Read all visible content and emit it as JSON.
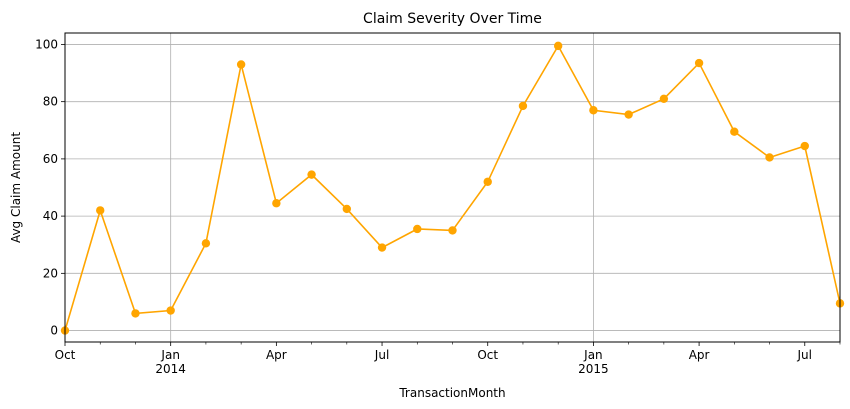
{
  "chart_data": {
    "type": "line",
    "title": "Claim Severity Over Time",
    "xlabel": "TransactionMonth",
    "ylabel": "Avg Claim Amount",
    "x": [
      "2013-10",
      "2013-11",
      "2013-12",
      "2014-01",
      "2014-02",
      "2014-03",
      "2014-04",
      "2014-05",
      "2014-06",
      "2014-07",
      "2014-08",
      "2014-09",
      "2014-10",
      "2014-11",
      "2014-12",
      "2015-01",
      "2015-02",
      "2015-03",
      "2015-04",
      "2015-05",
      "2015-06",
      "2015-07",
      "2015-08"
    ],
    "series": [
      {
        "values": [
          0,
          42,
          6,
          7,
          30.5,
          93,
          44.5,
          54.5,
          42.5,
          29,
          35.5,
          35,
          52,
          78.5,
          99.5,
          77,
          75.5,
          81,
          93.5,
          69.5,
          60.5,
          64.5,
          9.5
        ],
        "color": "#FFA500"
      }
    ],
    "xlim": [
      "2013-10",
      "2015-08"
    ],
    "ylim": [
      -4,
      104
    ],
    "yticks": [
      0,
      20,
      40,
      60,
      80,
      100
    ],
    "xticks_major": [
      {
        "month": "2013-10",
        "label": "Oct",
        "sublabel": ""
      },
      {
        "month": "2014-01",
        "label": "Jan",
        "sublabel": "2014"
      },
      {
        "month": "2014-04",
        "label": "Apr",
        "sublabel": ""
      },
      {
        "month": "2014-07",
        "label": "Jul",
        "sublabel": ""
      },
      {
        "month": "2014-10",
        "label": "Oct",
        "sublabel": ""
      },
      {
        "month": "2015-01",
        "label": "Jan",
        "sublabel": "2015"
      },
      {
        "month": "2015-04",
        "label": "Apr",
        "sublabel": ""
      },
      {
        "month": "2015-07",
        "label": "Jul",
        "sublabel": ""
      }
    ],
    "grid": true,
    "gridlines_x": [
      "2014-01",
      "2015-01"
    ]
  }
}
